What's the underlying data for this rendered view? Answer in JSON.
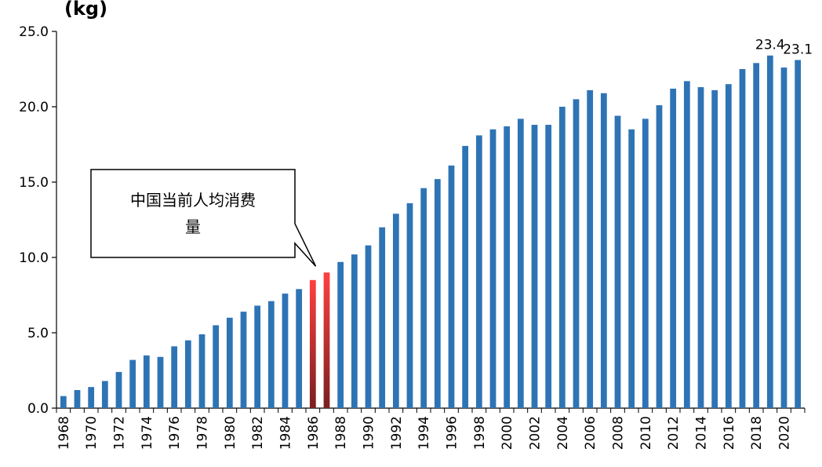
{
  "chart_data": {
    "type": "bar",
    "unit_label": "(kg)",
    "ylim": [
      0,
      25
    ],
    "yticks": [
      "0.0",
      "5.0",
      "10.0",
      "15.0",
      "20.0",
      "25.0"
    ],
    "x": [
      1968,
      1969,
      1970,
      1971,
      1972,
      1973,
      1974,
      1975,
      1976,
      1977,
      1978,
      1979,
      1980,
      1981,
      1982,
      1983,
      1984,
      1985,
      1986,
      1987,
      1988,
      1989,
      1990,
      1991,
      1992,
      1993,
      1994,
      1995,
      1996,
      1997,
      1998,
      1999,
      2000,
      2001,
      2002,
      2003,
      2004,
      2005,
      2006,
      2007,
      2008,
      2009,
      2010,
      2011,
      2012,
      2013,
      2014,
      2015,
      2016,
      2017,
      2018,
      2019,
      2020,
      2021
    ],
    "values": [
      0.8,
      1.2,
      1.4,
      1.8,
      2.4,
      3.2,
      3.5,
      3.4,
      4.1,
      4.5,
      4.9,
      5.5,
      6.0,
      6.4,
      6.8,
      7.1,
      7.6,
      7.9,
      8.5,
      9.0,
      9.7,
      10.2,
      10.8,
      12.0,
      12.9,
      13.6,
      14.6,
      15.2,
      16.1,
      17.4,
      18.1,
      18.5,
      18.7,
      19.2,
      18.8,
      18.8,
      20.0,
      20.5,
      21.1,
      20.9,
      19.4,
      18.5,
      19.2,
      20.1,
      21.2,
      21.7,
      21.3,
      21.1,
      21.5,
      22.5,
      22.9,
      23.4,
      22.6,
      23.1
    ],
    "xtick_labels": [
      "1968",
      "1970",
      "1972",
      "1974",
      "1976",
      "1978",
      "1980",
      "1982",
      "1984",
      "1986",
      "1988",
      "1990",
      "1992",
      "1994",
      "1996",
      "1998",
      "2000",
      "2002",
      "2004",
      "2006",
      "2008",
      "2010",
      "2012",
      "2014",
      "2016",
      "2018",
      "2020"
    ],
    "highlight_years": [
      1986,
      1987
    ],
    "data_labels": [
      {
        "year": 2019,
        "text": "23.4"
      },
      {
        "year": 2021,
        "text": "23.1"
      }
    ],
    "annotation": {
      "text_line1": "中国当前人均消费",
      "text_line2": "量"
    },
    "colors": {
      "bar": "#2e74b5",
      "highlight_top": "#ff4040",
      "highlight_bottom": "#7a1f1f"
    },
    "grid": false
  }
}
